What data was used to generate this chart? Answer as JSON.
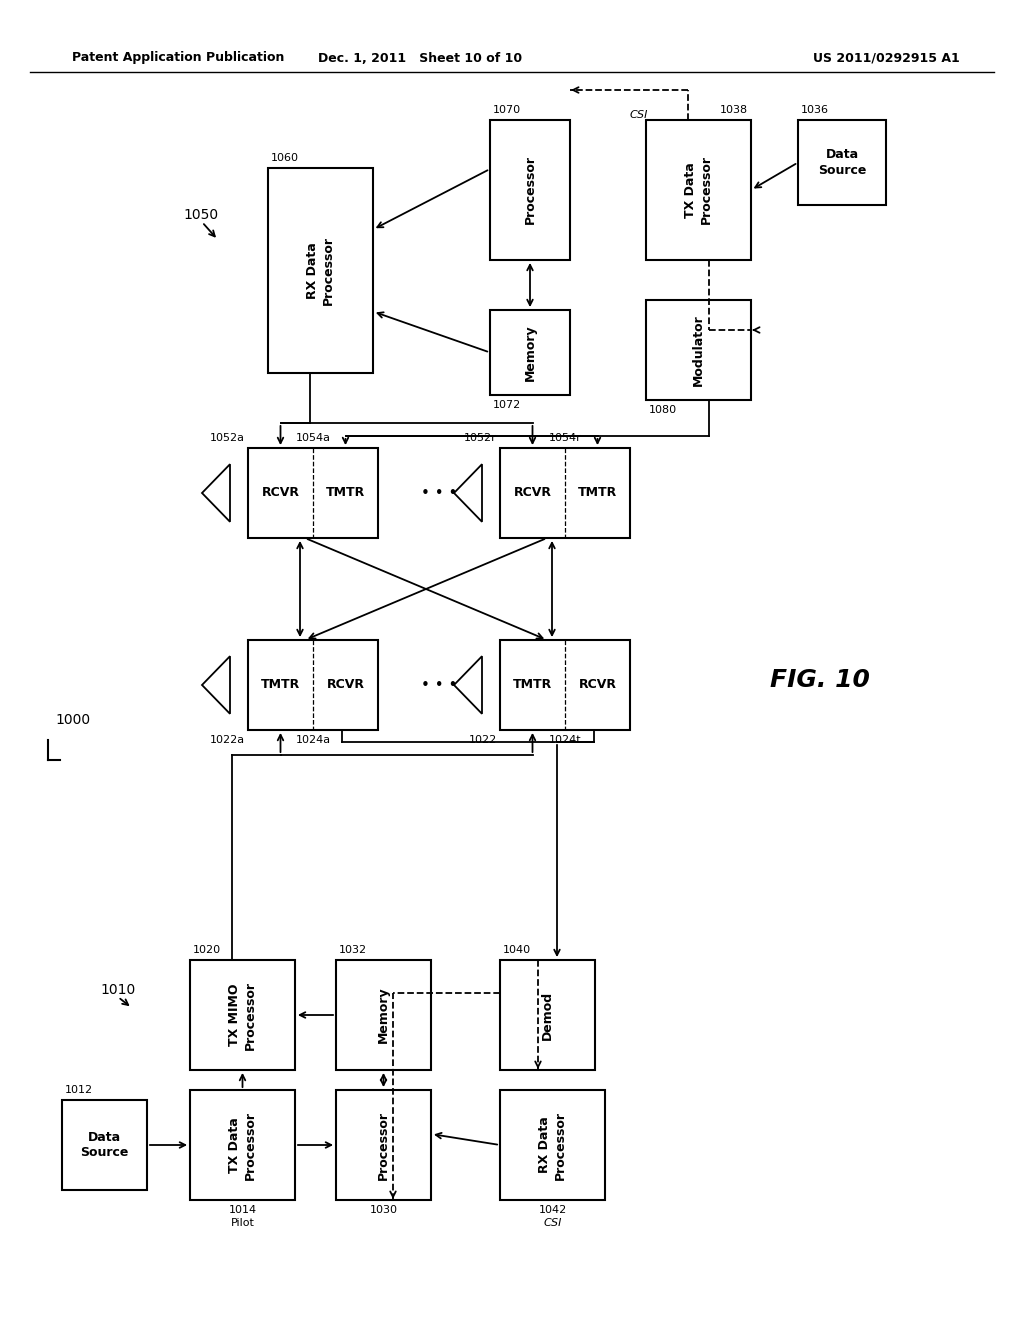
{
  "header_left": "Patent Application Publication",
  "header_mid": "Dec. 1, 2011   Sheet 10 of 10",
  "header_right": "US 2011/0292915 A1",
  "fig_label": "FIG. 10",
  "bg_color": "#ffffff"
}
